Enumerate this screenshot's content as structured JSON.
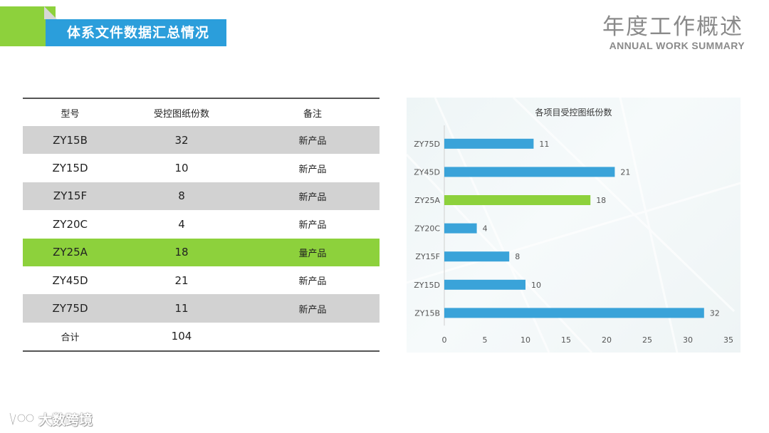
{
  "header": {
    "section_title": "体系文件数据汇总情况",
    "title": "年度工作概述",
    "subtitle": "ANNUAL WORK SUMMARY"
  },
  "table": {
    "columns": [
      "型号",
      "受控图纸份数",
      "备注"
    ],
    "rows": [
      {
        "model": "ZY15B",
        "count": "32",
        "note": "新产品"
      },
      {
        "model": "ZY15D",
        "count": "10",
        "note": "新产品"
      },
      {
        "model": "ZY15F",
        "count": "8",
        "note": "新产品"
      },
      {
        "model": "ZY20C",
        "count": "4",
        "note": "新产品"
      },
      {
        "model": "ZY25A",
        "count": "18",
        "note": "量产品"
      },
      {
        "model": "ZY45D",
        "count": "21",
        "note": "新产品"
      },
      {
        "model": "ZY75D",
        "count": "11",
        "note": "新产品"
      }
    ],
    "total": {
      "label": "合计",
      "count": "104",
      "note": ""
    }
  },
  "chart_data": {
    "type": "bar",
    "orientation": "horizontal",
    "title": "各项目受控图纸份数",
    "categories": [
      "ZY75D",
      "ZY45D",
      "ZY25A",
      "ZY20C",
      "ZY15F",
      "ZY15D",
      "ZY15B"
    ],
    "values": [
      11,
      21,
      18,
      4,
      8,
      10,
      32
    ],
    "highlight": "ZY25A",
    "xlim": [
      0,
      35
    ],
    "xticks": [
      0,
      5,
      10,
      15,
      20,
      25,
      30,
      35
    ],
    "grid": false,
    "colors": {
      "bar": "#3aa3d9",
      "highlight": "#8dd13c"
    }
  },
  "colors": {
    "accent_blue": "#2b9edb",
    "accent_green": "#8dd13c",
    "row_gray": "#d2d2d2"
  },
  "watermark": {
    "text": "大数跨境"
  }
}
